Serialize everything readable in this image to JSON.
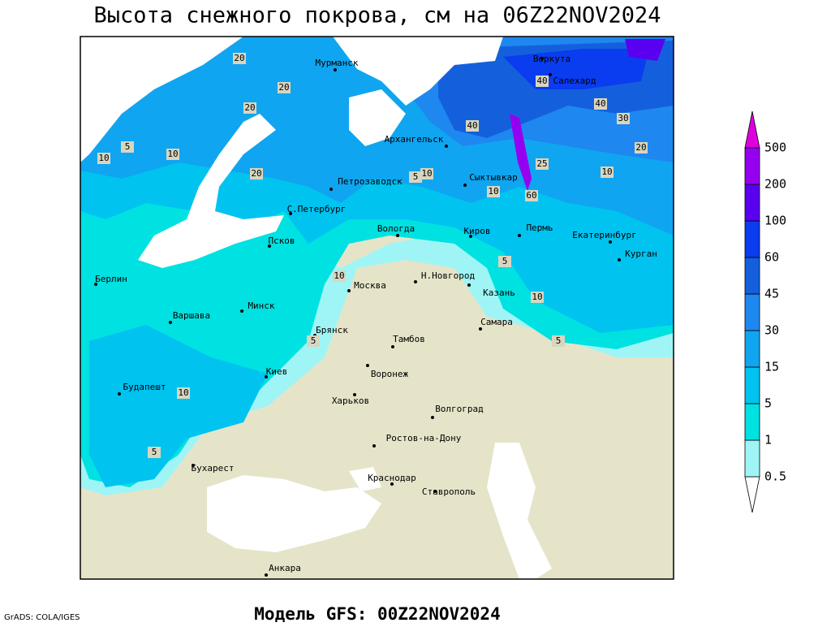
{
  "title": "Высота снежного покрова, см на 06Z22NOV2024",
  "footer": "Модель GFS: 00Z22NOV2024",
  "credit": "GrADS: COLA/IGES",
  "cities": [
    "Мурманск",
    "Воркута",
    "Салехард",
    "Архангельск",
    "Петрозаводск",
    "Сыктывкар",
    "С.Петербург",
    "Вологда",
    "Киров",
    "Пермь",
    "Екатеринбург",
    "Курган",
    "Псков",
    "Берлин",
    "Москва",
    "Н.Новгород",
    "Казань",
    "Минск",
    "Варшава",
    "Самара",
    "Брянск",
    "Тамбов",
    "Воронеж",
    "Киев",
    "Будапешт",
    "Харьков",
    "Волгоград",
    "Ростов-на-Дону",
    "Бухарест",
    "Краснодар",
    "Ставрополь",
    "Анкара"
  ],
  "contour_labels": [
    20,
    20,
    10,
    10,
    5,
    20,
    20,
    40,
    40,
    40,
    30,
    20,
    10,
    10,
    5,
    10,
    10,
    5,
    10,
    5,
    5,
    10,
    5,
    60,
    25
  ],
  "legend": {
    "levels": [
      0.5,
      1,
      5,
      15,
      30,
      45,
      60,
      100,
      200,
      500
    ],
    "colors": [
      "#ffffff",
      "#9ff5f5",
      "#00e1e1",
      "#00c3f0",
      "#10a5f0",
      "#1e87f0",
      "#1460dc",
      "#0a3cf0",
      "#5a00f0",
      "#9600f0",
      "#dc00dc"
    ]
  }
}
